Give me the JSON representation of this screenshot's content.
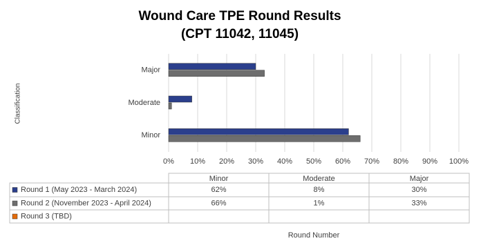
{
  "chart_data": {
    "type": "bar",
    "orientation": "horizontal",
    "title": "Wound Care TPE Round Results",
    "subtitle": "(CPT 11042, 11045)",
    "y_label": "Classification",
    "x_label": "Round Number",
    "categories": [
      "Minor",
      "Moderate",
      "Major"
    ],
    "series": [
      {
        "name": "Round 1 (May 2023 - March 2024)",
        "color": "#2b3f8c",
        "values": [
          62,
          8,
          30
        ],
        "value_labels": [
          "62%",
          "8%",
          "30%"
        ]
      },
      {
        "name": "Round 2 (November 2023 - April 2024)",
        "color": "#6e6e6e",
        "values": [
          66,
          1,
          33
        ],
        "value_labels": [
          "66%",
          "1%",
          "33%"
        ]
      },
      {
        "name": "Round 3 (TBD)",
        "color": "#e46c0a",
        "values": [
          null,
          null,
          null
        ]
      }
    ],
    "xlim": [
      0,
      100
    ],
    "xticks": [
      {
        "value": 0,
        "label": "0%"
      },
      {
        "value": 10,
        "label": "10%"
      },
      {
        "value": 20,
        "label": "20%"
      },
      {
        "value": 30,
        "label": "30%"
      },
      {
        "value": 40,
        "label": "40%"
      },
      {
        "value": 50,
        "label": "50%"
      },
      {
        "value": 60,
        "label": "60%"
      },
      {
        "value": 70,
        "label": "70%"
      },
      {
        "value": 80,
        "label": "80%"
      },
      {
        "value": 90,
        "label": "90%"
      },
      {
        "value": 100,
        "label": "100%"
      }
    ],
    "grid": true
  }
}
